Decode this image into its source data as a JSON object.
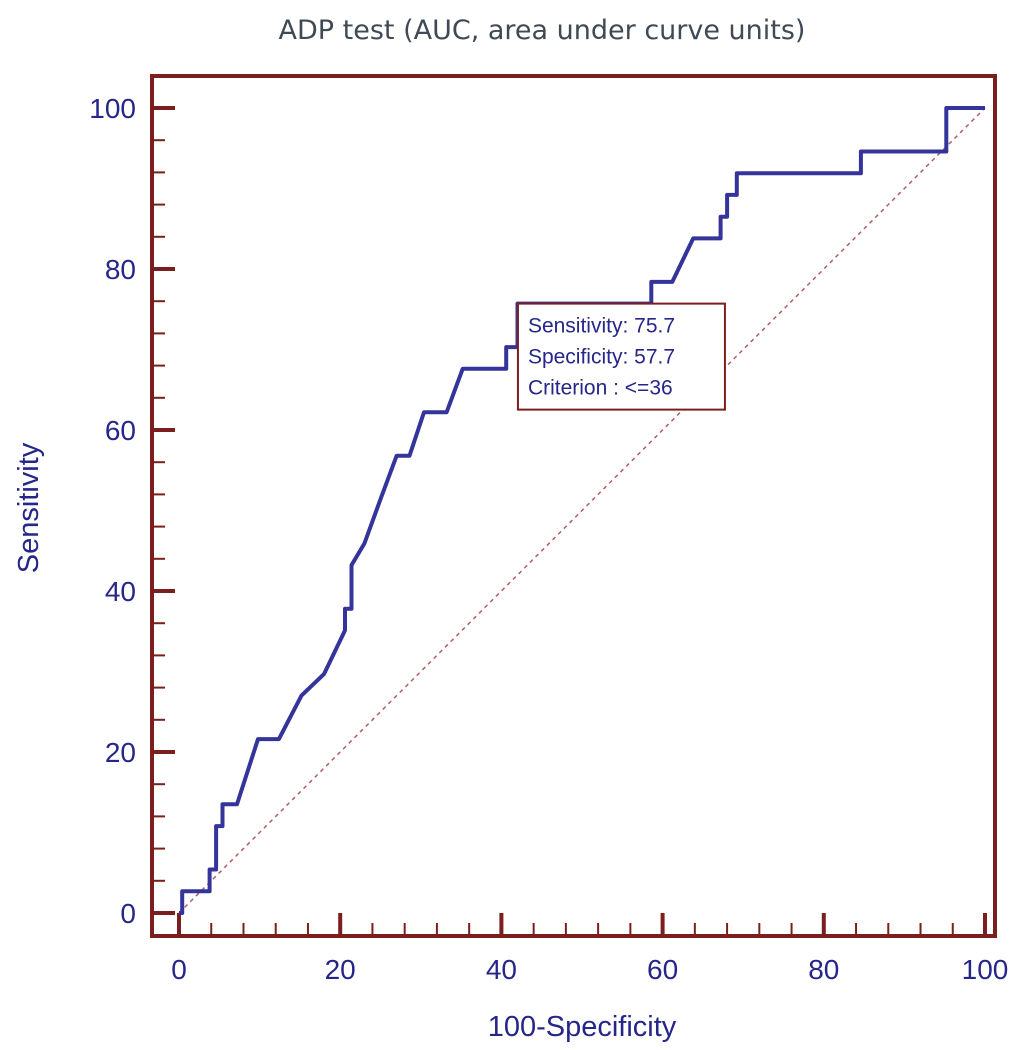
{
  "chart_data": {
    "type": "line",
    "title": "ADP test (AUC, area under curve units)",
    "xlabel": "100-Specificity",
    "ylabel": "Sensitivity",
    "xlim": [
      0,
      100
    ],
    "ylim": [
      0,
      100
    ],
    "xticks": [
      "0",
      "20",
      "40",
      "60",
      "80",
      "100"
    ],
    "yticks": [
      "0",
      "20",
      "40",
      "60",
      "80",
      "100"
    ],
    "xticks_values": [
      0,
      20,
      40,
      60,
      80,
      100
    ],
    "yticks_values": [
      0,
      20,
      40,
      60,
      80,
      100
    ],
    "grid": false,
    "series": [
      {
        "type": "step-line",
        "color": "#34349a",
        "x": [
          0,
          0.4,
          0.4,
          3.8,
          3.8,
          4.6,
          4.6,
          5.4,
          5.4,
          7.2,
          9.8,
          12.4,
          15.2,
          18.0,
          20.6,
          20.6,
          21.4,
          21.4,
          23.0,
          25.0,
          27.0,
          27.0,
          28.6,
          30.4,
          30.4,
          33.2,
          35.2,
          35.2,
          40.6,
          40.6,
          42.0,
          42.0,
          58.0,
          58.6,
          58.6,
          61.2,
          63.8,
          63.8,
          67.2,
          67.2,
          68.0,
          68.0,
          69.2,
          69.2,
          83.8,
          84.6,
          84.6,
          95.2,
          95.2,
          100
        ],
        "y": [
          0,
          0,
          2.7,
          2.7,
          5.4,
          5.4,
          10.8,
          10.8,
          13.5,
          13.5,
          21.6,
          21.6,
          27.0,
          29.7,
          35.1,
          37.8,
          37.8,
          43.2,
          45.9,
          51.4,
          56.8,
          56.8,
          56.8,
          62.2,
          62.2,
          62.2,
          67.6,
          67.6,
          67.6,
          70.3,
          70.3,
          75.7,
          75.7,
          75.7,
          78.4,
          78.4,
          83.8,
          83.8,
          83.8,
          86.5,
          86.5,
          89.2,
          89.2,
          91.9,
          91.9,
          91.9,
          94.6,
          94.6,
          100,
          100
        ]
      },
      {
        "type": "reference-diagonal",
        "color": "#b06060",
        "x": [
          0,
          100
        ],
        "y": [
          0,
          100
        ]
      }
    ],
    "annotation": {
      "lines": [
        "Sensitivity: 75.7",
        "Specificity: 57.7",
        "Criterion : <=36"
      ],
      "anchor": {
        "x": 42.3,
        "y": 75.7
      },
      "border_color": "#7a1e1e"
    },
    "colors": {
      "frame": "#7a1e1e",
      "text": "#26268a",
      "title": "#3f4a55"
    }
  }
}
